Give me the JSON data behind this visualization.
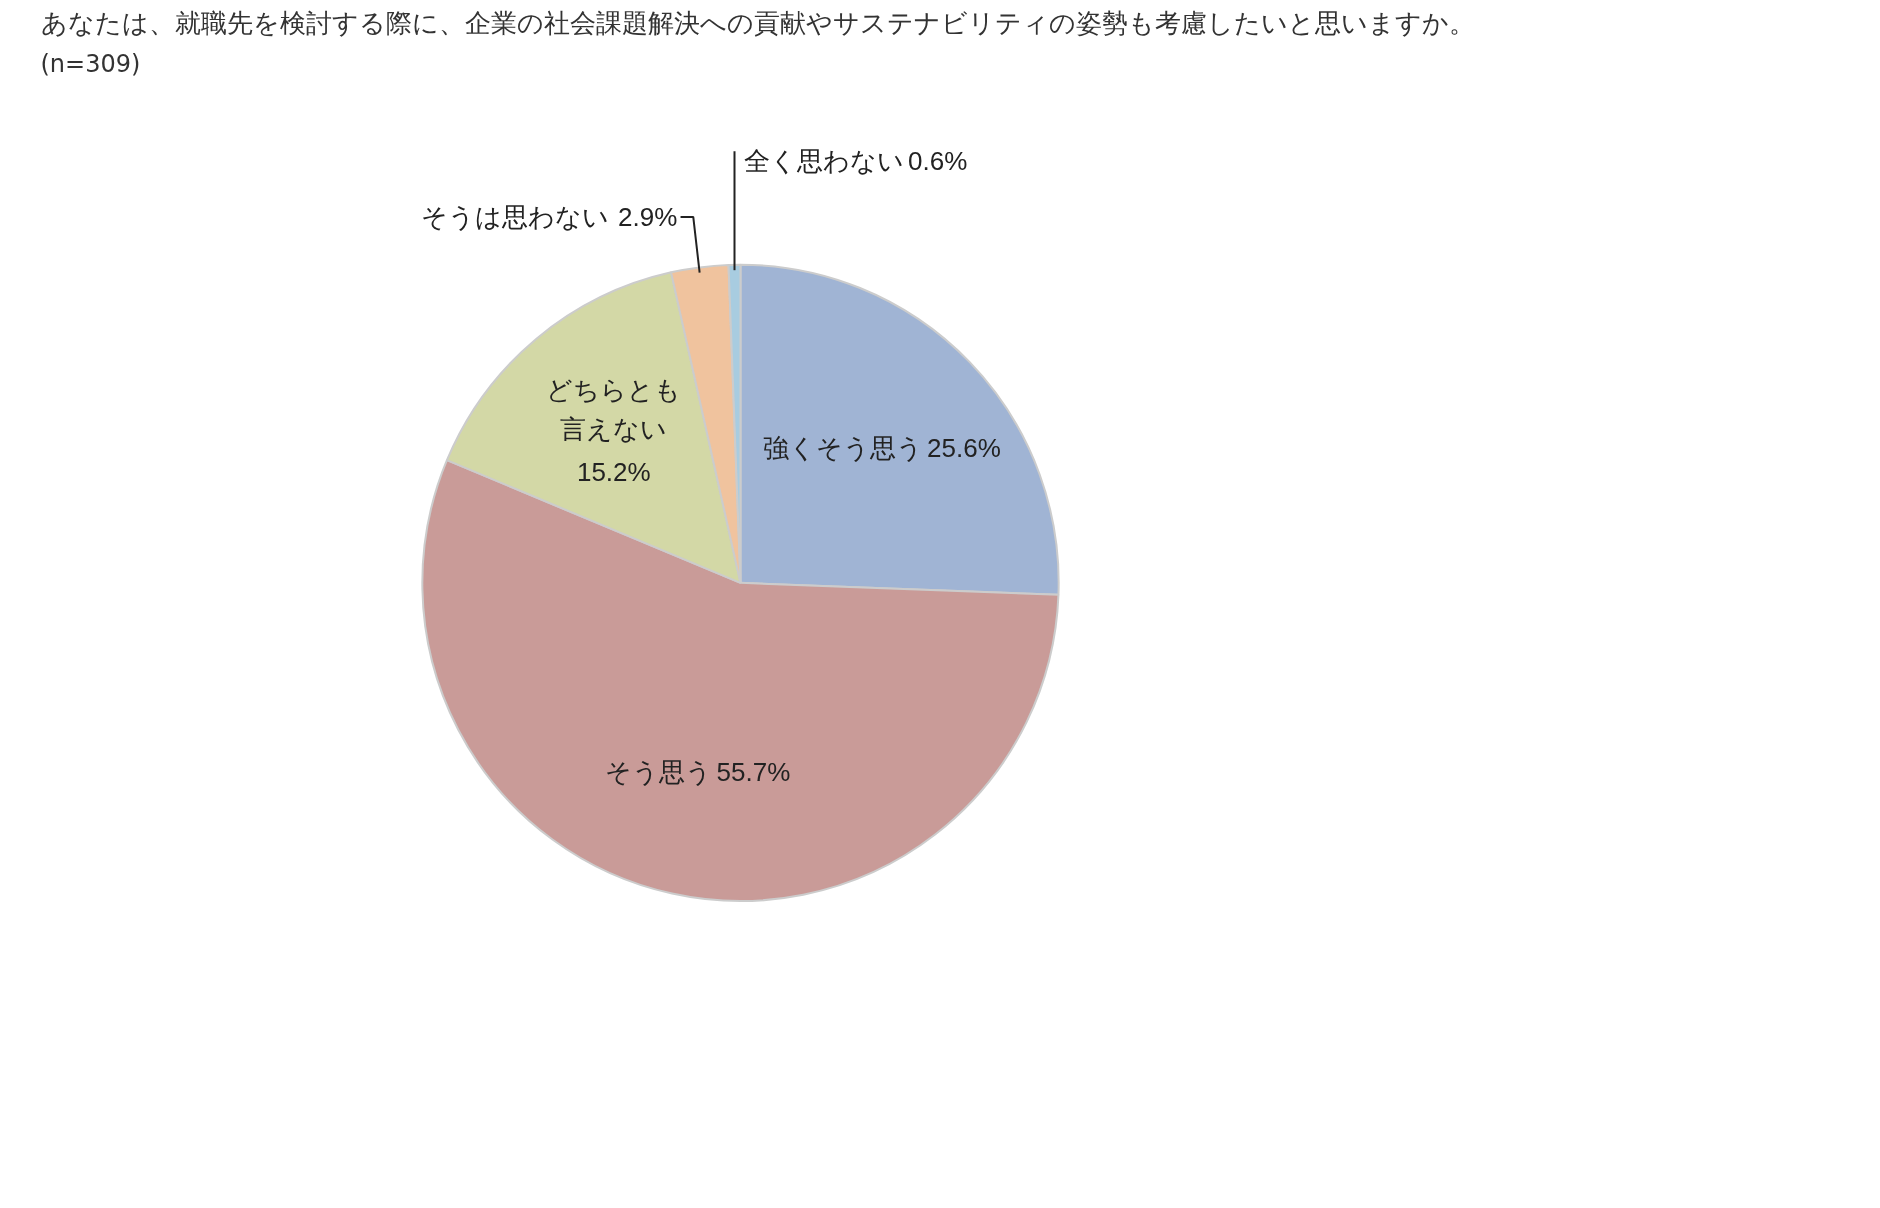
{
  "chart_data": {
    "type": "pie",
    "title": "あなたは、就職先を検討する際に、企業の社会課題解決への貢献やサステナビリティの姿勢も考慮したいと思いますか。",
    "subtitle": "(n=309)",
    "categories": [
      "強くそう思う",
      "そう思う",
      "どちらとも言えない",
      "そうは思わない",
      "全く思わない"
    ],
    "values": [
      25.6,
      55.7,
      15.2,
      2.9,
      0.6
    ],
    "colors": [
      "#a0b4d4",
      "#c99b98",
      "#d3d8a6",
      "#f0c39e",
      "#a8cce0"
    ],
    "data_labels": true,
    "value_labels": [
      "25.6%",
      "55.7%",
      "15.2%",
      "2.9%",
      "0.6%"
    ]
  }
}
